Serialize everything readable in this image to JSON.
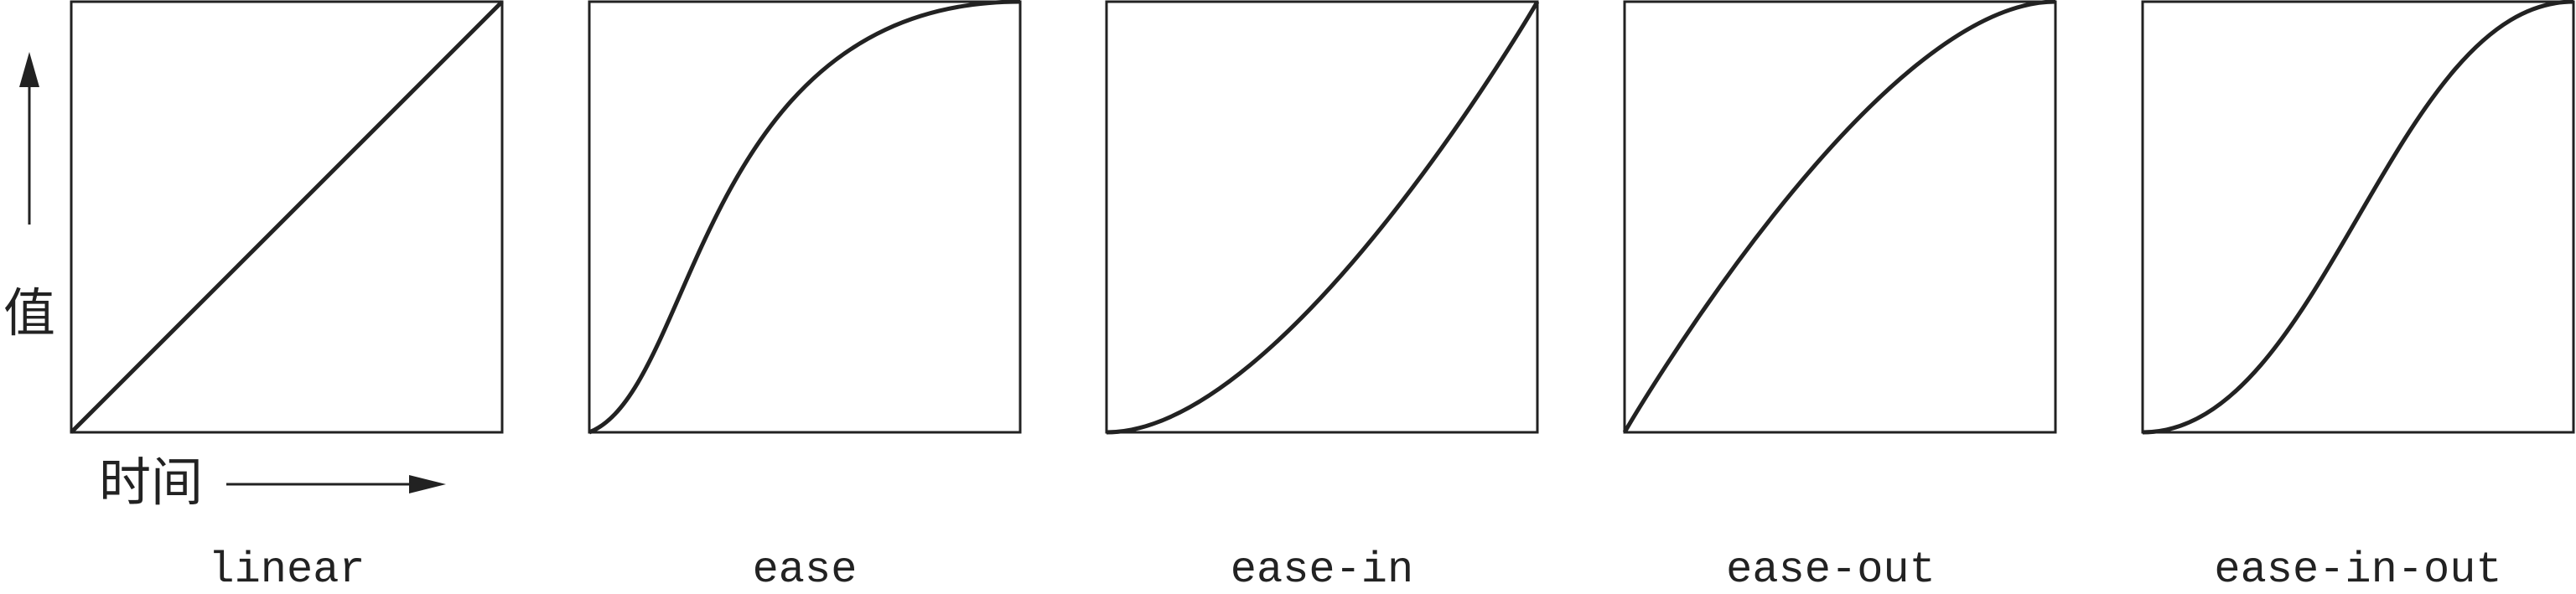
{
  "axis": {
    "y_label": "值",
    "x_label": "时间"
  },
  "panels": [
    {
      "label": "linear",
      "bezier": [
        0.0,
        0.0,
        1.0,
        1.0
      ]
    },
    {
      "label": "ease",
      "bezier": [
        0.25,
        0.1,
        0.25,
        1.0
      ]
    },
    {
      "label": "ease-in",
      "bezier": [
        0.42,
        0.0,
        1.0,
        1.0
      ]
    },
    {
      "label": "ease-out",
      "bezier": [
        0.0,
        0.0,
        0.58,
        1.0
      ]
    },
    {
      "label": "ease-in-out",
      "bezier": [
        0.42,
        0.0,
        0.58,
        1.0
      ]
    }
  ],
  "colors": {
    "stroke": "#222222",
    "background": "#ffffff"
  }
}
